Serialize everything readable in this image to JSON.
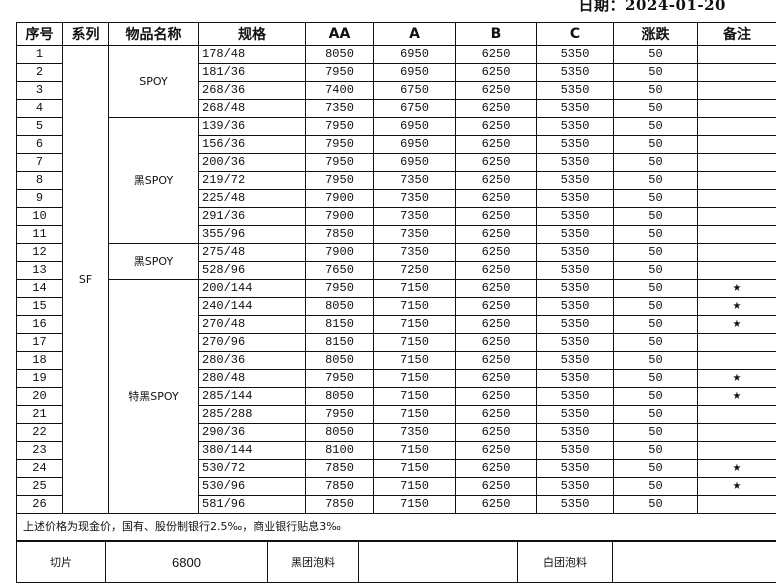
{
  "date_label": "日期：2024-01-20",
  "headers": [
    "序号",
    "系列",
    "物品名称",
    "规格",
    "AA",
    "A",
    "B",
    "C",
    "涨跌",
    "备注"
  ],
  "series": "SF",
  "groups": [
    {
      "name": "SPOY",
      "rows": 4
    },
    {
      "name": "黑SPOY",
      "rows": 7
    },
    {
      "name": "黑SPOY",
      "rows": 2
    },
    {
      "name": "特黑SPOY",
      "rows": 13
    }
  ],
  "rows": [
    {
      "no": "1",
      "spec": "178/48",
      "aa": "8050",
      "a": "6950",
      "b": "6250",
      "c": "5350",
      "change": "50",
      "note": ""
    },
    {
      "no": "2",
      "spec": "181/36",
      "aa": "7950",
      "a": "6950",
      "b": "6250",
      "c": "5350",
      "change": "50",
      "note": ""
    },
    {
      "no": "3",
      "spec": "268/36",
      "aa": "7400",
      "a": "6750",
      "b": "6250",
      "c": "5350",
      "change": "50",
      "note": ""
    },
    {
      "no": "4",
      "spec": "268/48",
      "aa": "7350",
      "a": "6750",
      "b": "6250",
      "c": "5350",
      "change": "50",
      "note": ""
    },
    {
      "no": "5",
      "spec": "139/36",
      "aa": "7950",
      "a": "6950",
      "b": "6250",
      "c": "5350",
      "change": "50",
      "note": ""
    },
    {
      "no": "6",
      "spec": "156/36",
      "aa": "7950",
      "a": "6950",
      "b": "6250",
      "c": "5350",
      "change": "50",
      "note": ""
    },
    {
      "no": "7",
      "spec": "200/36",
      "aa": "7950",
      "a": "6950",
      "b": "6250",
      "c": "5350",
      "change": "50",
      "note": ""
    },
    {
      "no": "8",
      "spec": "219/72",
      "aa": "7950",
      "a": "7350",
      "b": "6250",
      "c": "5350",
      "change": "50",
      "note": ""
    },
    {
      "no": "9",
      "spec": "225/48",
      "aa": "7900",
      "a": "7350",
      "b": "6250",
      "c": "5350",
      "change": "50",
      "note": ""
    },
    {
      "no": "10",
      "spec": "291/36",
      "aa": "7900",
      "a": "7350",
      "b": "6250",
      "c": "5350",
      "change": "50",
      "note": ""
    },
    {
      "no": "11",
      "spec": "355/96",
      "aa": "7850",
      "a": "7350",
      "b": "6250",
      "c": "5350",
      "change": "50",
      "note": ""
    },
    {
      "no": "12",
      "spec": "275/48",
      "aa": "7900",
      "a": "7350",
      "b": "6250",
      "c": "5350",
      "change": "50",
      "note": ""
    },
    {
      "no": "13",
      "spec": "528/96",
      "aa": "7650",
      "a": "7250",
      "b": "6250",
      "c": "5350",
      "change": "50",
      "note": ""
    },
    {
      "no": "14",
      "spec": "200/144",
      "aa": "7950",
      "a": "7150",
      "b": "6250",
      "c": "5350",
      "change": "50",
      "note": "★"
    },
    {
      "no": "15",
      "spec": "240/144",
      "aa": "8050",
      "a": "7150",
      "b": "6250",
      "c": "5350",
      "change": "50",
      "note": "★"
    },
    {
      "no": "16",
      "spec": "270/48",
      "aa": "8150",
      "a": "7150",
      "b": "6250",
      "c": "5350",
      "change": "50",
      "note": "★"
    },
    {
      "no": "17",
      "spec": "270/96",
      "aa": "8150",
      "a": "7150",
      "b": "6250",
      "c": "5350",
      "change": "50",
      "note": ""
    },
    {
      "no": "18",
      "spec": "280/36",
      "aa": "8050",
      "a": "7150",
      "b": "6250",
      "c": "5350",
      "change": "50",
      "note": ""
    },
    {
      "no": "19",
      "spec": "280/48",
      "aa": "7950",
      "a": "7150",
      "b": "6250",
      "c": "5350",
      "change": "50",
      "note": "★"
    },
    {
      "no": "20",
      "spec": "285/144",
      "aa": "8050",
      "a": "7150",
      "b": "6250",
      "c": "5350",
      "change": "50",
      "note": "★"
    },
    {
      "no": "21",
      "spec": "285/288",
      "aa": "7950",
      "a": "7150",
      "b": "6250",
      "c": "5350",
      "change": "50",
      "note": ""
    },
    {
      "no": "22",
      "spec": "290/36",
      "aa": "8050",
      "a": "7350",
      "b": "6250",
      "c": "5350",
      "change": "50",
      "note": ""
    },
    {
      "no": "23",
      "spec": "380/144",
      "aa": "8100",
      "a": "7150",
      "b": "6250",
      "c": "5350",
      "change": "50",
      "note": ""
    },
    {
      "no": "24",
      "spec": "530/72",
      "aa": "7850",
      "a": "7150",
      "b": "6250",
      "c": "5350",
      "change": "50",
      "note": "★"
    },
    {
      "no": "25",
      "spec": "530/96",
      "aa": "7850",
      "a": "7150",
      "b": "6250",
      "c": "5350",
      "change": "50",
      "note": "★"
    },
    {
      "no": "26",
      "spec": "581/96",
      "aa": "7850",
      "a": "7150",
      "b": "6250",
      "c": "5350",
      "change": "50",
      "note": ""
    }
  ],
  "footer": {
    "note": "上述价格为现金价，国有、股份制银行2.5‰，商业银行贴息3‰",
    "slice_label": "切片",
    "slice_value": "6800",
    "black_label": "黑团泡料",
    "black_value": "",
    "white_label": "白团泡料",
    "white_value": ""
  }
}
